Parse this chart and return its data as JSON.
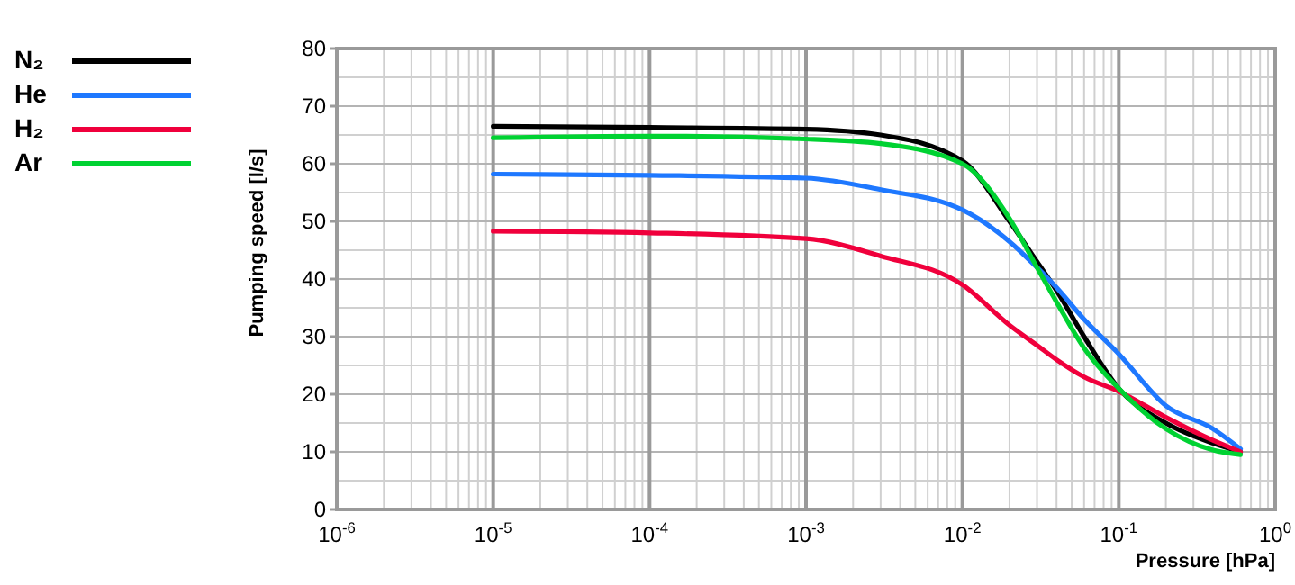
{
  "chart_data": {
    "type": "line",
    "xlabel": "Pressure [hPa]",
    "ylabel": "Pumping speed [l/s]",
    "log": "x",
    "grid": true,
    "legend": "left",
    "line_style": "solid",
    "marker": "none",
    "xlim": [
      1e-06,
      1
    ],
    "ylim": [
      0,
      80
    ],
    "xticks": [
      {
        "value": 1e-06,
        "label": "10$^{-6}$"
      },
      {
        "value": 1e-05,
        "label": "10$^{-5}$"
      },
      {
        "value": 0.0001,
        "label": "10$^{-4}$"
      },
      {
        "value": 0.001,
        "label": "10$^{-3}$"
      },
      {
        "value": 0.01,
        "label": "10$^{-2}$"
      },
      {
        "value": 0.1,
        "label": "10$^{-1}$"
      },
      {
        "value": 1,
        "label": "10$^{0}$"
      }
    ],
    "yticks": [
      0,
      10,
      20,
      30,
      40,
      50,
      60,
      70,
      80
    ],
    "x": [
      1e-05,
      0.0001,
      0.001,
      0.003,
      0.01,
      0.02,
      0.03,
      0.04,
      0.06,
      0.1,
      0.2,
      0.4,
      0.6
    ],
    "series": [
      {
        "name": "N₂",
        "color": "#000000",
        "values": [
          66.5,
          66.3,
          66,
          65,
          60.5,
          50,
          43,
          38,
          30,
          21,
          15,
          11.5,
          10
        ]
      },
      {
        "name": "He",
        "color": "#1e78ff",
        "values": [
          58.2,
          58,
          57.5,
          55.5,
          52,
          46.5,
          42,
          38.5,
          33,
          27,
          18,
          14,
          10.5
        ]
      },
      {
        "name": "H₂",
        "color": "#f0003c",
        "values": [
          48.3,
          48,
          47,
          44,
          39,
          32,
          28.5,
          26,
          23,
          20.5,
          16,
          12,
          10
        ]
      },
      {
        "name": "Ar",
        "color": "#00d232",
        "values": [
          64.5,
          64.8,
          64.3,
          63.5,
          60,
          50.5,
          42,
          36,
          28,
          21,
          14,
          10.3,
          9.5
        ]
      }
    ]
  }
}
